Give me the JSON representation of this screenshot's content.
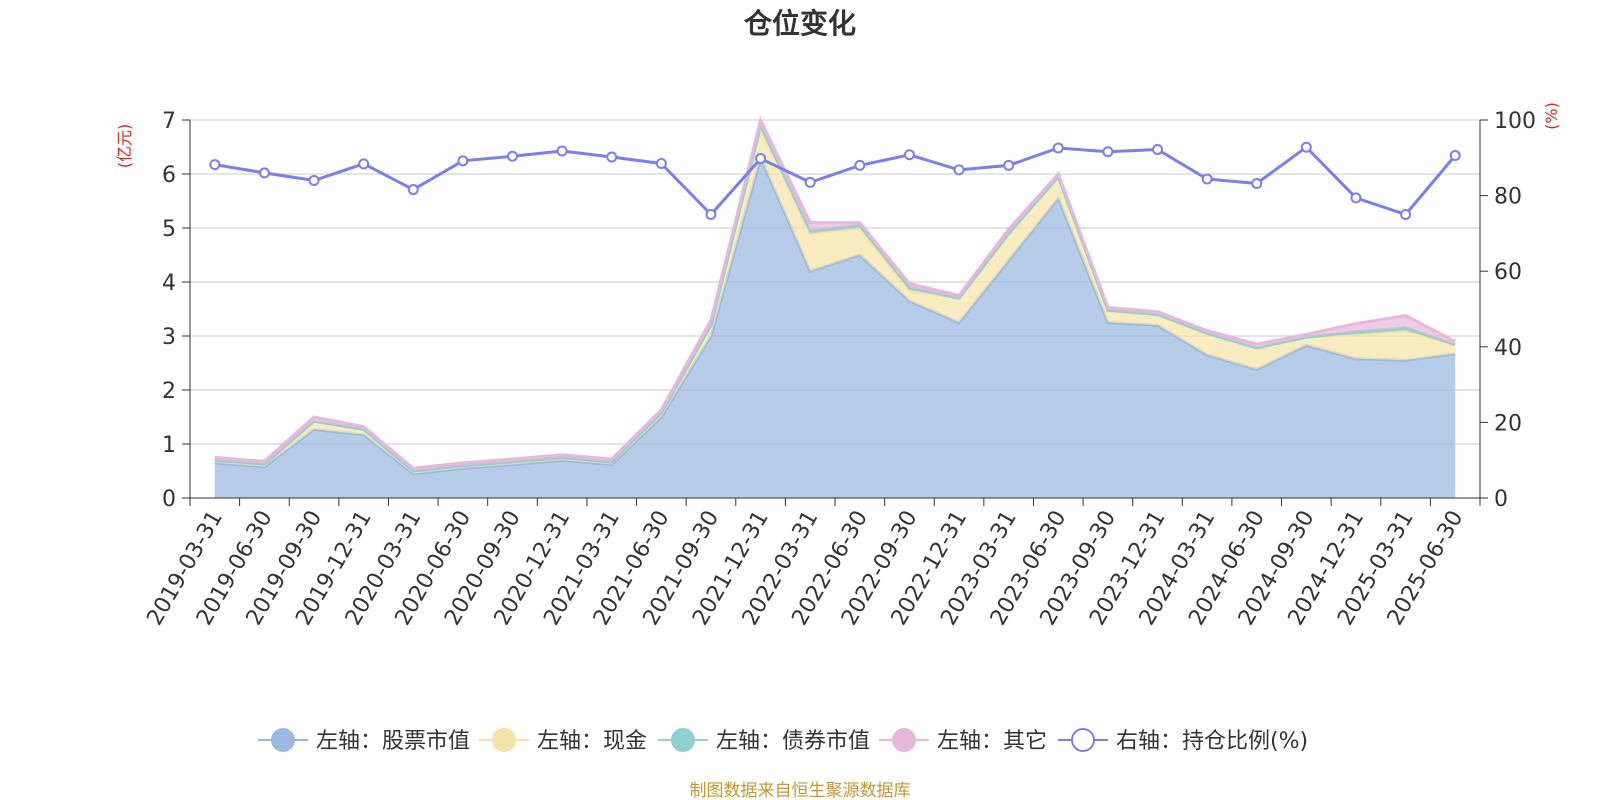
{
  "chart_data": {
    "type": "area",
    "title": "仓位变化",
    "left_axis_unit": "(亿元)",
    "right_axis_unit": "(%)",
    "left_ylim": [
      0,
      7
    ],
    "left_ticks": [
      0,
      1,
      2,
      3,
      4,
      5,
      6,
      7
    ],
    "right_ylim": [
      0,
      100
    ],
    "right_ticks": [
      0,
      20,
      40,
      60,
      80,
      100
    ],
    "grid": true,
    "legend_position": "bottom",
    "categories": [
      "2019-03-31",
      "2019-06-30",
      "2019-09-30",
      "2019-12-31",
      "2020-03-31",
      "2020-06-30",
      "2020-09-30",
      "2020-12-31",
      "2021-03-31",
      "2021-06-30",
      "2021-09-30",
      "2021-12-31",
      "2022-03-31",
      "2022-06-30",
      "2022-09-30",
      "2022-12-31",
      "2023-03-31",
      "2023-06-30",
      "2023-09-30",
      "2023-12-31",
      "2024-03-31",
      "2024-06-30",
      "2024-09-30",
      "2024-12-31",
      "2025-03-31",
      "2025-06-30"
    ],
    "series": [
      {
        "name": "左轴：股票市值",
        "axis": "left",
        "type": "stacked-area",
        "color": "#9ab8e0",
        "values": [
          0.65,
          0.58,
          1.27,
          1.17,
          0.45,
          0.55,
          0.62,
          0.7,
          0.62,
          1.5,
          3.0,
          6.3,
          4.2,
          4.5,
          3.65,
          3.25,
          4.4,
          5.55,
          3.25,
          3.2,
          2.65,
          2.38,
          2.83,
          2.58,
          2.55,
          2.67
        ]
      },
      {
        "name": "左轴：现金",
        "axis": "left",
        "type": "stacked-area",
        "color": "#f5e4a8",
        "values": [
          0.05,
          0.05,
          0.15,
          0.1,
          0.05,
          0.05,
          0.05,
          0.05,
          0.05,
          0.08,
          0.2,
          0.55,
          0.7,
          0.5,
          0.2,
          0.45,
          0.5,
          0.4,
          0.2,
          0.2,
          0.4,
          0.4,
          0.15,
          0.45,
          0.55,
          0.17
        ]
      },
      {
        "name": "左轴：债券市值",
        "axis": "left",
        "type": "stacked-area",
        "color": "#8fd0d0",
        "values": [
          0,
          0,
          0,
          0,
          0,
          0,
          0,
          0,
          0,
          0,
          0,
          0.05,
          0.05,
          0.05,
          0.05,
          0,
          0,
          0,
          0.03,
          0,
          0,
          0,
          0,
          0.05,
          0.05,
          0
        ]
      },
      {
        "name": "左轴：其它",
        "axis": "left",
        "type": "stacked-area",
        "color": "#e8b8dc",
        "values": [
          0.05,
          0.05,
          0.08,
          0.05,
          0.05,
          0.05,
          0.05,
          0.05,
          0.05,
          0.05,
          0.1,
          0.1,
          0.15,
          0.05,
          0.07,
          0.05,
          0.08,
          0.05,
          0.05,
          0.05,
          0.05,
          0.07,
          0.05,
          0.15,
          0.23,
          0.06
        ]
      },
      {
        "name": "右轴：持仓比例(%)",
        "axis": "right",
        "type": "line",
        "color": "#7b7fe8",
        "values": [
          88.2,
          86.0,
          84.0,
          88.4,
          81.6,
          89.2,
          90.4,
          91.8,
          90.2,
          88.5,
          75.0,
          89.8,
          83.5,
          88.0,
          90.8,
          86.8,
          88.0,
          92.6,
          91.6,
          92.2,
          84.4,
          83.2,
          92.8,
          79.4,
          75.0,
          90.6
        ]
      }
    ]
  },
  "source_note": "制图数据来自恒生聚源数据库"
}
